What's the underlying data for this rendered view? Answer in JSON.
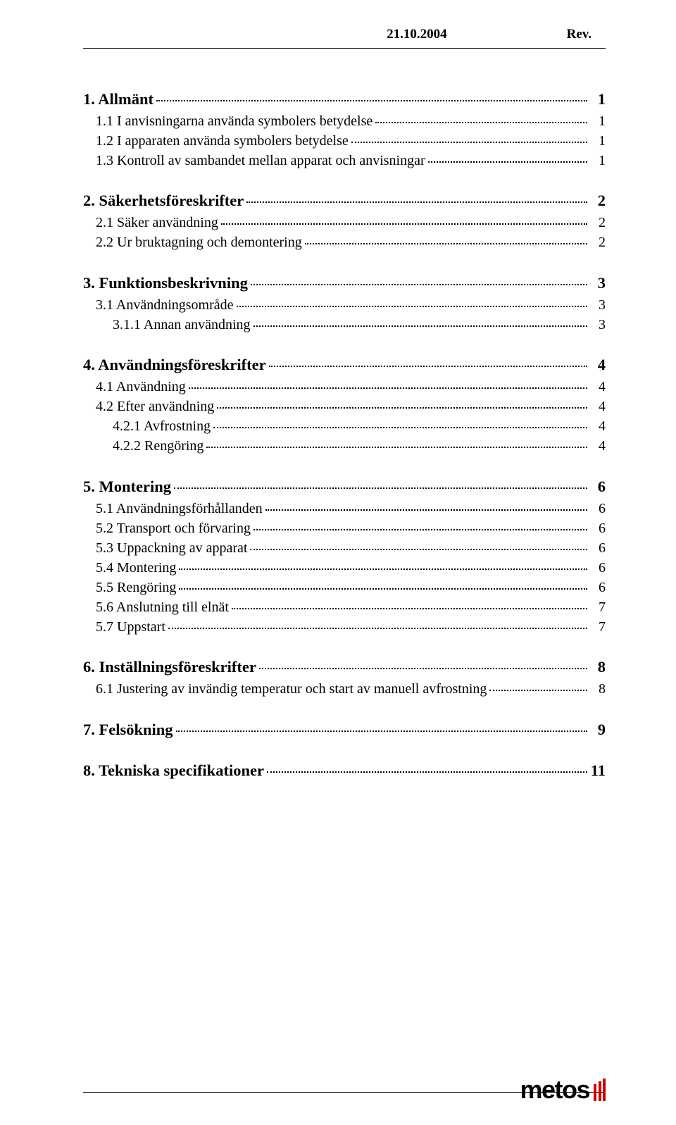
{
  "header": {
    "date": "21.10.2004",
    "rev": "Rev."
  },
  "toc": [
    {
      "lvl": 1,
      "label": "1. Allmänt",
      "page": "1"
    },
    {
      "lvl": 2,
      "label": "1.1 I anvisningarna använda symbolers betydelse",
      "page": "1"
    },
    {
      "lvl": 2,
      "label": "1.2 I apparaten använda symbolers betydelse",
      "page": "1"
    },
    {
      "lvl": 2,
      "label": "1.3 Kontroll av sambandet mellan apparat och anvisningar",
      "page": "1"
    },
    {
      "lvl": 1,
      "label": "2. Säkerhetsföreskrifter",
      "page": "2"
    },
    {
      "lvl": 2,
      "label": "2.1 Säker användning",
      "page": "2"
    },
    {
      "lvl": 2,
      "label": "2.2 Ur bruktagning och demontering",
      "page": "2"
    },
    {
      "lvl": 1,
      "label": "3. Funktionsbeskrivning",
      "page": "3"
    },
    {
      "lvl": 2,
      "label": "3.1 Användningsområde",
      "page": "3"
    },
    {
      "lvl": 3,
      "label": "3.1.1 Annan användning",
      "page": "3"
    },
    {
      "lvl": 1,
      "label": "4. Användningsföreskrifter",
      "page": "4"
    },
    {
      "lvl": 2,
      "label": "4.1 Användning",
      "page": "4"
    },
    {
      "lvl": 2,
      "label": "4.2 Efter användning",
      "page": "4"
    },
    {
      "lvl": 3,
      "label": "4.2.1 Avfrostning",
      "page": "4"
    },
    {
      "lvl": 3,
      "label": "4.2.2 Rengöring",
      "page": "4"
    },
    {
      "lvl": 1,
      "label": "5. Montering",
      "page": "6"
    },
    {
      "lvl": 2,
      "label": "5.1 Användningsförhållanden",
      "page": "6"
    },
    {
      "lvl": 2,
      "label": "5.2 Transport och förvaring",
      "page": "6"
    },
    {
      "lvl": 2,
      "label": "5.3 Uppackning av apparat",
      "page": "6"
    },
    {
      "lvl": 2,
      "label": "5.4 Montering",
      "page": "6"
    },
    {
      "lvl": 2,
      "label": "5.5 Rengöring",
      "page": "6"
    },
    {
      "lvl": 2,
      "label": "5.6 Anslutning till elnät",
      "page": "7"
    },
    {
      "lvl": 2,
      "label": "5.7 Uppstart",
      "page": "7"
    },
    {
      "lvl": 1,
      "label": "6. Inställningsföreskrifter",
      "page": "8"
    },
    {
      "lvl": 2,
      "label": "6.1 Justering av invändig temperatur och start av manuell avfrostning",
      "page": "8"
    },
    {
      "lvl": 1,
      "label": "7. Felsökning",
      "page": "9"
    },
    {
      "lvl": 1,
      "label": "8. Tekniska specifikationer",
      "page": "11"
    }
  ],
  "logo": {
    "text": "metos"
  }
}
